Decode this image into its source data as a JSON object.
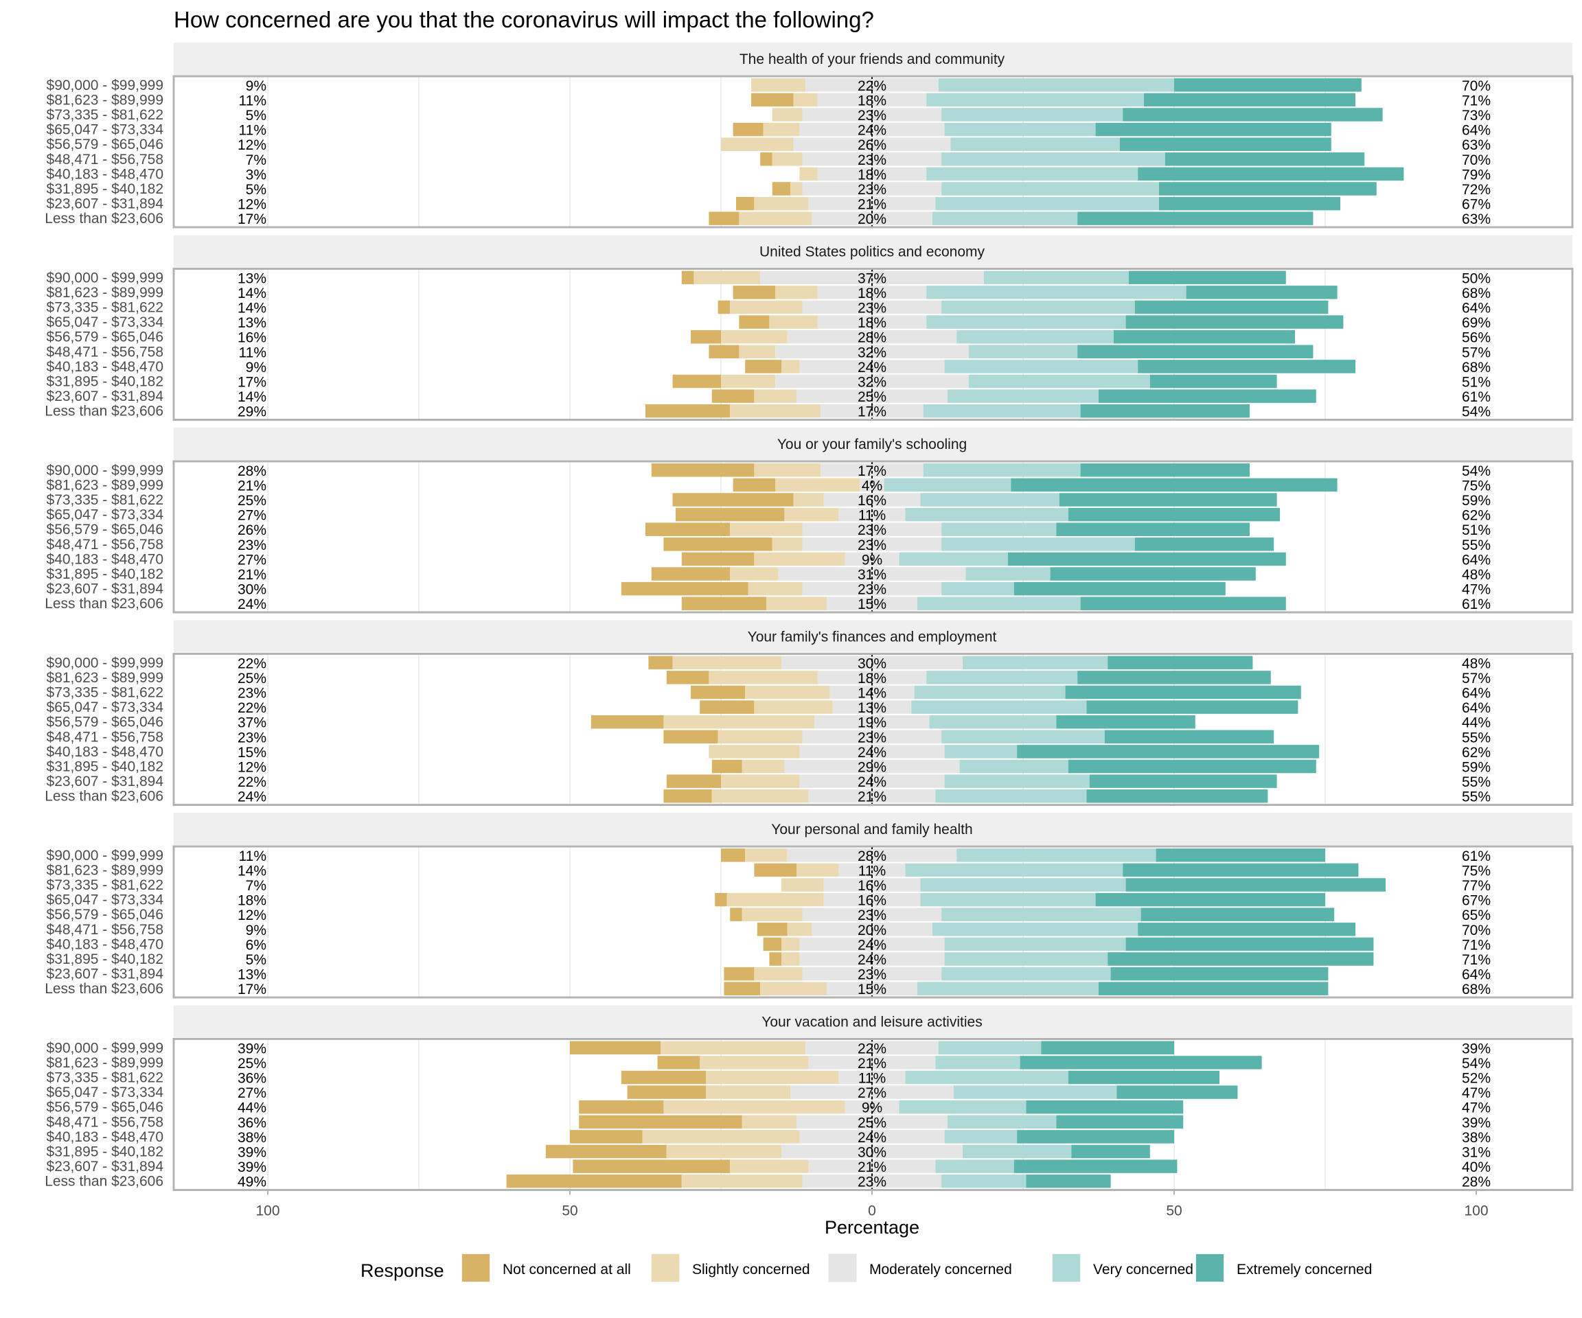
{
  "chart_data": {
    "type": "bar",
    "subtype": "diverging-stacked-horizontal",
    "title": "How concerned are you that the coronavirus will impact the following?",
    "xlabel": "Percentage",
    "ylabel": "",
    "xlim": [
      -100,
      100
    ],
    "x_ticks": [
      -100,
      -50,
      0,
      50,
      100
    ],
    "x_tick_labels": [
      "100",
      "50",
      "0",
      "50",
      "100"
    ],
    "grid": true,
    "legend": {
      "title": "Response",
      "position": "bottom",
      "entries": [
        {
          "label": "Not concerned at all",
          "color": "#d9b365"
        },
        {
          "label": "Slightly concerned",
          "color": "#ebd9b2"
        },
        {
          "label": "Moderately concerned",
          "color": "#e5e5e5"
        },
        {
          "label": "Very concerned",
          "color": "#aed9d6"
        },
        {
          "label": "Extremely concerned",
          "color": "#5ab4ac"
        }
      ]
    },
    "categories": [
      "$90,000 - $99,999",
      "$81,623 - $89,999",
      "$73,335 - $81,622",
      "$65,047 - $73,334",
      "$56,579 - $65,046",
      "$48,471 - $56,758",
      "$40,183 - $48,470",
      "$31,895 - $40,182",
      "$23,607 - $31,894",
      "Less than $23,606"
    ],
    "series_order": [
      "Not concerned at all",
      "Slightly concerned",
      "Moderately concerned",
      "Very concerned",
      "Extremely concerned"
    ],
    "panels": [
      {
        "title": "The health of your friends and community",
        "left_labels": [
          "9%",
          "11%",
          "5%",
          "11%",
          "12%",
          "7%",
          "3%",
          "5%",
          "12%",
          "17%"
        ],
        "center_labels": [
          "22%",
          "18%",
          "23%",
          "24%",
          "26%",
          "23%",
          "18%",
          "23%",
          "21%",
          "20%"
        ],
        "right_labels": [
          "70%",
          "71%",
          "73%",
          "64%",
          "63%",
          "70%",
          "79%",
          "72%",
          "67%",
          "63%"
        ],
        "values": [
          [
            0,
            9,
            22,
            39,
            31
          ],
          [
            7,
            4,
            18,
            36,
            35
          ],
          [
            0,
            5,
            23,
            30,
            43
          ],
          [
            5,
            6,
            24,
            25,
            39
          ],
          [
            0,
            12,
            26,
            28,
            35
          ],
          [
            2,
            5,
            23,
            37,
            33
          ],
          [
            0,
            3,
            18,
            35,
            44
          ],
          [
            3,
            2,
            23,
            36,
            36
          ],
          [
            3,
            9,
            21,
            37,
            30
          ],
          [
            5,
            12,
            20,
            24,
            39
          ]
        ]
      },
      {
        "title": "United States politics and economy",
        "left_labels": [
          "13%",
          "14%",
          "14%",
          "13%",
          "16%",
          "11%",
          "9%",
          "17%",
          "14%",
          "29%"
        ],
        "center_labels": [
          "37%",
          "18%",
          "23%",
          "18%",
          "28%",
          "32%",
          "24%",
          "32%",
          "25%",
          "17%"
        ],
        "right_labels": [
          "50%",
          "68%",
          "64%",
          "69%",
          "56%",
          "57%",
          "68%",
          "51%",
          "61%",
          "54%"
        ],
        "values": [
          [
            2,
            11,
            37,
            24,
            26
          ],
          [
            7,
            7,
            18,
            43,
            25
          ],
          [
            2,
            12,
            23,
            32,
            32
          ],
          [
            5,
            8,
            18,
            33,
            36
          ],
          [
            5,
            11,
            28,
            26,
            30
          ],
          [
            5,
            6,
            32,
            18,
            39
          ],
          [
            6,
            3,
            24,
            32,
            36
          ],
          [
            8,
            9,
            32,
            30,
            21
          ],
          [
            7,
            7,
            25,
            25,
            36
          ],
          [
            14,
            15,
            17,
            26,
            28
          ]
        ]
      },
      {
        "title": "You or your family's schooling",
        "left_labels": [
          "28%",
          "21%",
          "25%",
          "27%",
          "26%",
          "23%",
          "27%",
          "21%",
          "30%",
          "24%"
        ],
        "center_labels": [
          "17%",
          "4%",
          "16%",
          "11%",
          "23%",
          "23%",
          "9%",
          "31%",
          "23%",
          "15%"
        ],
        "right_labels": [
          "54%",
          "75%",
          "59%",
          "62%",
          "51%",
          "55%",
          "64%",
          "48%",
          "47%",
          "61%"
        ],
        "values": [
          [
            17,
            11,
            17,
            26,
            28
          ],
          [
            7,
            14,
            4,
            21,
            54
          ],
          [
            20,
            5,
            16,
            23,
            36
          ],
          [
            18,
            9,
            11,
            27,
            35
          ],
          [
            14,
            12,
            23,
            19,
            32
          ],
          [
            18,
            5,
            23,
            32,
            23
          ],
          [
            12,
            15,
            9,
            18,
            46
          ],
          [
            13,
            8,
            31,
            14,
            34
          ],
          [
            21,
            9,
            23,
            12,
            35
          ],
          [
            14,
            10,
            15,
            27,
            34
          ]
        ]
      },
      {
        "title": "Your family's finances and employment",
        "left_labels": [
          "22%",
          "25%",
          "23%",
          "22%",
          "37%",
          "23%",
          "15%",
          "12%",
          "22%",
          "24%"
        ],
        "center_labels": [
          "30%",
          "18%",
          "14%",
          "13%",
          "19%",
          "23%",
          "24%",
          "29%",
          "24%",
          "21%"
        ],
        "right_labels": [
          "48%",
          "57%",
          "64%",
          "64%",
          "44%",
          "55%",
          "62%",
          "59%",
          "55%",
          "55%"
        ],
        "values": [
          [
            4,
            18,
            30,
            24,
            24
          ],
          [
            7,
            18,
            18,
            25,
            32
          ],
          [
            9,
            14,
            14,
            25,
            39
          ],
          [
            9,
            13,
            13,
            29,
            35
          ],
          [
            12,
            25,
            19,
            21,
            23
          ],
          [
            9,
            14,
            23,
            27,
            28
          ],
          [
            0,
            15,
            24,
            12,
            50
          ],
          [
            5,
            7,
            29,
            18,
            41
          ],
          [
            9,
            13,
            24,
            24,
            31
          ],
          [
            8,
            16,
            21,
            25,
            30
          ]
        ]
      },
      {
        "title": "Your personal and family health",
        "left_labels": [
          "11%",
          "14%",
          "7%",
          "18%",
          "12%",
          "9%",
          "6%",
          "5%",
          "13%",
          "17%"
        ],
        "center_labels": [
          "28%",
          "11%",
          "16%",
          "16%",
          "23%",
          "20%",
          "24%",
          "24%",
          "23%",
          "15%"
        ],
        "right_labels": [
          "61%",
          "75%",
          "77%",
          "67%",
          "65%",
          "70%",
          "71%",
          "71%",
          "64%",
          "68%"
        ],
        "values": [
          [
            4,
            7,
            28,
            33,
            28
          ],
          [
            7,
            7,
            11,
            36,
            39
          ],
          [
            0,
            7,
            16,
            34,
            43
          ],
          [
            2,
            16,
            16,
            29,
            38
          ],
          [
            2,
            10,
            23,
            33,
            32
          ],
          [
            5,
            4,
            20,
            34,
            36
          ],
          [
            3,
            3,
            24,
            30,
            41
          ],
          [
            2,
            3,
            24,
            27,
            44
          ],
          [
            5,
            8,
            23,
            28,
            36
          ],
          [
            6,
            11,
            15,
            30,
            38
          ]
        ]
      },
      {
        "title": "Your vacation and leisure activities",
        "left_labels": [
          "39%",
          "25%",
          "36%",
          "27%",
          "44%",
          "36%",
          "38%",
          "39%",
          "39%",
          "49%"
        ],
        "center_labels": [
          "22%",
          "21%",
          "11%",
          "27%",
          "9%",
          "25%",
          "24%",
          "30%",
          "21%",
          "23%"
        ],
        "right_labels": [
          "39%",
          "54%",
          "52%",
          "47%",
          "47%",
          "39%",
          "38%",
          "31%",
          "40%",
          "28%"
        ],
        "values": [
          [
            15,
            24,
            22,
            17,
            22
          ],
          [
            7,
            18,
            21,
            14,
            40
          ],
          [
            14,
            22,
            11,
            27,
            25
          ],
          [
            13,
            14,
            27,
            27,
            20
          ],
          [
            14,
            30,
            9,
            21,
            26
          ],
          [
            27,
            9,
            25,
            18,
            21
          ],
          [
            12,
            26,
            24,
            12,
            26
          ],
          [
            20,
            19,
            30,
            18,
            13
          ],
          [
            26,
            13,
            21,
            13,
            27
          ],
          [
            29,
            20,
            23,
            14,
            14
          ]
        ]
      }
    ]
  }
}
